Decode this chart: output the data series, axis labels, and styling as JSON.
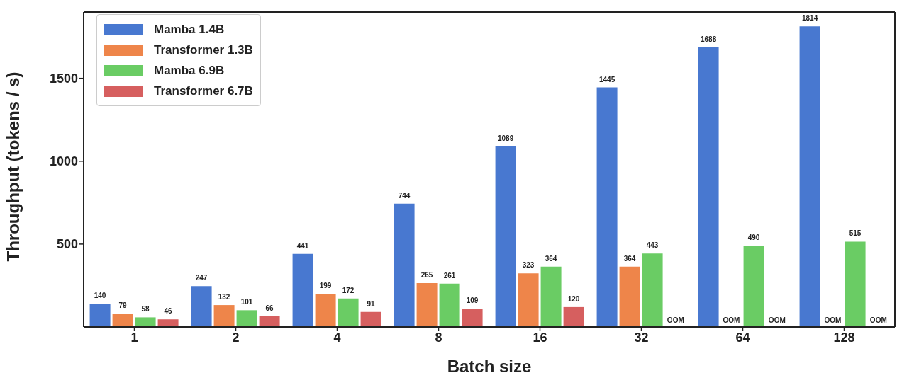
{
  "chart_data": {
    "type": "bar",
    "xlabel": "Batch size",
    "ylabel": "Throughput (tokens / s)",
    "categories": [
      "1",
      "2",
      "4",
      "8",
      "16",
      "32",
      "64",
      "128"
    ],
    "series": [
      {
        "name": "Mamba 1.4B",
        "color": "#4878d0",
        "values": [
          140,
          247,
          441,
          744,
          1089,
          1445,
          1688,
          1814
        ],
        "value_labels": [
          "140",
          "247",
          "441",
          "744",
          "1089",
          "1445",
          "1688",
          "1814"
        ]
      },
      {
        "name": "Transformer 1.3B",
        "color": "#ee854a",
        "values": [
          79,
          132,
          199,
          265,
          323,
          364,
          null,
          null
        ],
        "value_labels": [
          "79",
          "132",
          "199",
          "265",
          "323",
          "364",
          "OOM",
          "OOM"
        ]
      },
      {
        "name": "Mamba 6.9B",
        "color": "#6acc64",
        "values": [
          58,
          101,
          172,
          261,
          364,
          443,
          490,
          515
        ],
        "value_labels": [
          "58",
          "101",
          "172",
          "261",
          "364",
          "443",
          "490",
          "515"
        ]
      },
      {
        "name": "Transformer 6.7B",
        "color": "#d65f5f",
        "values": [
          46,
          66,
          91,
          109,
          120,
          null,
          null,
          null
        ],
        "value_labels": [
          "46",
          "66",
          "91",
          "109",
          "120",
          "OOM",
          "OOM",
          "OOM"
        ]
      }
    ],
    "ylim": [
      0,
      1900
    ],
    "yticks": [
      500,
      1000,
      1500
    ],
    "legend": "top left"
  }
}
